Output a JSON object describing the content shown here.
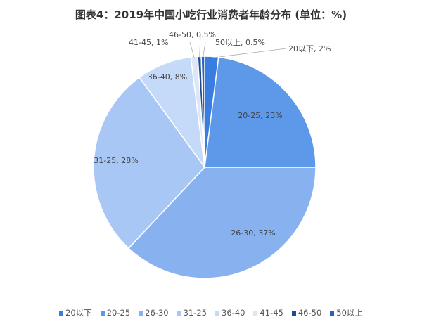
{
  "chart_data": {
    "type": "pie",
    "title": "图表4：2019年中国小吃行业消费者年龄分布 (单位：%)",
    "start": "top",
    "direction": "clockwise",
    "legend_position": "bottom",
    "categories": [
      "20以下",
      "20-25",
      "26-30",
      "31-25",
      "36-40",
      "41-45",
      "46-50",
      "50以上"
    ],
    "values": [
      2,
      23,
      37,
      28,
      8,
      1,
      0.5,
      0.5
    ],
    "data_labels": [
      "20以下, 2%",
      "20-25, 23%",
      "26-30, 37%",
      "31-25, 28%",
      "36-40, 8%",
      "41-45, 1%",
      "46-50, 0.5%",
      "50以上, 0.5%"
    ],
    "colors": [
      "#3a7de0",
      "#5e98e8",
      "#87b1ef",
      "#a8c7f4",
      "#c4daf8",
      "#dbe7f7",
      "#1d4c92",
      "#2b62b8"
    ]
  }
}
